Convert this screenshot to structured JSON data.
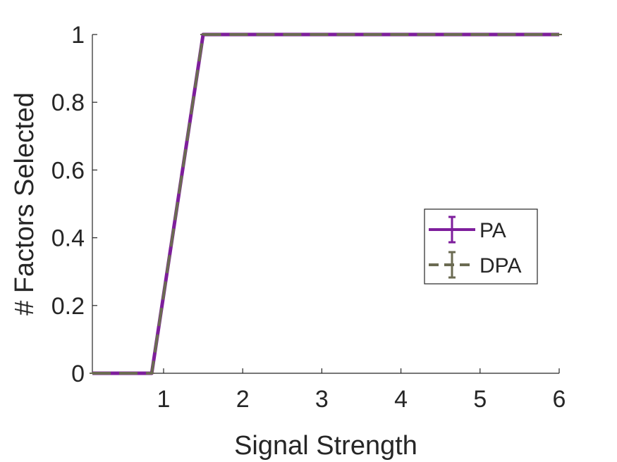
{
  "chart_data": {
    "type": "line",
    "xlabel": "Signal Strength",
    "ylabel": "# Factors Selected",
    "xlim": [
      0.1,
      6
    ],
    "ylim": [
      0,
      1
    ],
    "xticks": [
      1,
      2,
      3,
      4,
      5,
      6
    ],
    "yticks": [
      0,
      0.2,
      0.4,
      0.6,
      0.8,
      1
    ],
    "xtick_labels": [
      "1",
      "2",
      "3",
      "4",
      "5",
      "6"
    ],
    "ytick_labels": [
      "0",
      "0.2",
      "0.4",
      "0.6",
      "0.8",
      "1"
    ],
    "grid": false,
    "legend_position": "right",
    "series": [
      {
        "name": "PA",
        "color": "#7e1e9c",
        "style": "solid",
        "x": [
          0.1,
          0.85,
          1.5,
          6
        ],
        "y": [
          0,
          0,
          1,
          1
        ]
      },
      {
        "name": "DPA",
        "color": "#6b6b52",
        "style": "dashed",
        "x": [
          0.1,
          0.85,
          1.5,
          6
        ],
        "y": [
          0,
          0,
          1,
          1
        ]
      }
    ]
  }
}
